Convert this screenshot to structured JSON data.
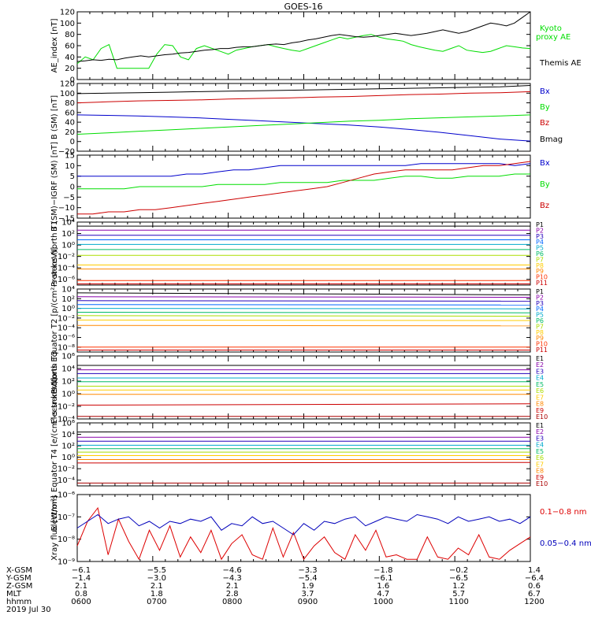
{
  "chart_data": [
    {
      "id": "ae",
      "type": "line",
      "title": "GOES-16",
      "ylabel": "AE_index [nT]",
      "ylim": [
        0,
        120
      ],
      "yscale": "linear",
      "yticks": [
        "0",
        "20",
        "40",
        "60",
        "80",
        "100",
        "120"
      ],
      "series": [
        {
          "name": "Kyoto proxy AE",
          "color": "#00dd00",
          "values": [
            28,
            40,
            35,
            55,
            62,
            20,
            20,
            20,
            20,
            20,
            45,
            62,
            60,
            40,
            35,
            55,
            60,
            55,
            50,
            45,
            52,
            55,
            58,
            60,
            62,
            58,
            55,
            52,
            50,
            55,
            60,
            65,
            70,
            75,
            72,
            75,
            78,
            80,
            75,
            72,
            70,
            68,
            62,
            58,
            55,
            52,
            50,
            55,
            60,
            52,
            50,
            48,
            50,
            55,
            60,
            58,
            56,
            55
          ]
        },
        {
          "name": "Themis AE",
          "color": "#000000",
          "values": [
            32,
            33,
            35,
            34,
            36,
            35,
            38,
            40,
            42,
            40,
            42,
            44,
            45,
            47,
            48,
            50,
            52,
            53,
            55,
            55,
            57,
            58,
            58,
            60,
            62,
            63,
            62,
            65,
            67,
            70,
            72,
            75,
            78,
            80,
            78,
            76,
            75,
            76,
            78,
            80,
            82,
            80,
            78,
            80,
            82,
            85,
            88,
            85,
            82,
            85,
            90,
            95,
            100,
            98,
            95,
            100,
            110,
            120
          ]
        }
      ]
    },
    {
      "id": "bsm",
      "type": "line",
      "ylabel": "B (SM) [nT]",
      "ylim": [
        -20,
        120
      ],
      "yscale": "linear",
      "yticks": [
        "−20",
        "0",
        "20",
        "40",
        "60",
        "80",
        "100",
        "120"
      ],
      "series": [
        {
          "name": "Bx",
          "color": "#0000cc",
          "values": [
            55,
            54,
            53,
            51,
            49,
            46,
            43,
            40,
            37,
            34,
            30,
            25,
            19,
            12,
            5,
            1
          ]
        },
        {
          "name": "By",
          "color": "#00dd00",
          "values": [
            15,
            18,
            21,
            24,
            27,
            30,
            33,
            36,
            39,
            42,
            44,
            47,
            49,
            51,
            53,
            55
          ]
        },
        {
          "name": "Bz",
          "color": "#cc0000",
          "values": [
            80,
            82,
            84,
            85,
            86,
            88,
            89,
            90,
            92,
            93,
            95,
            97,
            98,
            100,
            101,
            103
          ]
        },
        {
          "name": "Bmag",
          "color": "#000000",
          "values": [
            99,
            100,
            101,
            102,
            103,
            104,
            105,
            106,
            107,
            108,
            109,
            110,
            111,
            112,
            113,
            116
          ]
        }
      ]
    },
    {
      "id": "digrf",
      "type": "line",
      "ylabel": "B (SM)−IGRF (SM) [nT]",
      "ylim": [
        -15,
        15
      ],
      "yscale": "linear",
      "yticks": [
        "−15",
        "−10",
        "−5",
        "0",
        "5",
        "10",
        "15"
      ],
      "series": [
        {
          "name": "Bx",
          "color": "#0000cc",
          "values": [
            5,
            5,
            5,
            5,
            5,
            5,
            5,
            6,
            6,
            7,
            8,
            8,
            9,
            10,
            10,
            10,
            10,
            10,
            10,
            10,
            10,
            10,
            11,
            11,
            11,
            11,
            11,
            11,
            10,
            11
          ]
        },
        {
          "name": "By",
          "color": "#00dd00",
          "values": [
            -1,
            -1,
            -1,
            -1,
            0,
            0,
            0,
            0,
            0,
            1,
            1,
            1,
            1,
            2,
            2,
            2,
            2,
            3,
            3,
            3,
            4,
            5,
            5,
            4,
            4,
            5,
            5,
            5,
            6,
            6
          ]
        },
        {
          "name": "Bz",
          "color": "#cc0000",
          "values": [
            -13,
            -13,
            -12,
            -12,
            -11,
            -11,
            -10,
            -9,
            -8,
            -7,
            -6,
            -5,
            -4,
            -3,
            -2,
            -1,
            0,
            2,
            4,
            6,
            7,
            8,
            8,
            8,
            8,
            9,
            10,
            10,
            11,
            12
          ]
        }
      ]
    },
    {
      "id": "pn",
      "type": "line",
      "ylabel": "Protons North T1",
      "ylim": [
        -7,
        4
      ],
      "yscale": "log",
      "yticks": [
        "10⁻⁶",
        "10⁻⁴",
        "10⁻²",
        "10⁰",
        "10²",
        "10⁴"
      ],
      "series": [
        {
          "name": "P1",
          "color": "#000000",
          "values": [
            3.3,
            3.3
          ]
        },
        {
          "name": "P2",
          "color": "#8800aa",
          "values": [
            2.6,
            2.6
          ]
        },
        {
          "name": "P3",
          "color": "#2200bb",
          "values": [
            1.7,
            1.7
          ]
        },
        {
          "name": "P4",
          "color": "#0066ff",
          "values": [
            0.9,
            0.9
          ]
        },
        {
          "name": "P5",
          "color": "#00aacc",
          "values": [
            0.1,
            0.1
          ]
        },
        {
          "name": "P6",
          "color": "#00bb66",
          "values": [
            -0.8,
            -0.8
          ]
        },
        {
          "name": "P7",
          "color": "#aadd00",
          "values": [
            -1.8,
            -1.8
          ]
        },
        {
          "name": "P8",
          "color": "#ffcc00",
          "values": [
            -3.5,
            -3.5
          ]
        },
        {
          "name": "P9",
          "color": "#ff8800",
          "values": [
            -4.2,
            -4.2
          ]
        },
        {
          "name": "P10",
          "color": "#ff3300",
          "values": [
            -6.2,
            -6.2
          ]
        },
        {
          "name": "P11",
          "color": "#cc0000",
          "values": [
            -6.8,
            -6.8
          ]
        }
      ]
    },
    {
      "id": "pe",
      "type": "line",
      "ylabel": "Protons Equator T2 [p/(cm²-s-sr-keV)]",
      "ylim": [
        -9,
        4
      ],
      "yscale": "log",
      "yticks": [
        "10⁻⁸",
        "10⁻⁶",
        "10⁻⁴",
        "10⁻²",
        "10⁰",
        "10²",
        "10⁴"
      ],
      "series": [
        {
          "name": "P1",
          "color": "#000000",
          "values": [
            3.2,
            2.8
          ]
        },
        {
          "name": "P2",
          "color": "#8800aa",
          "values": [
            2.4,
            2.3
          ]
        },
        {
          "name": "P3",
          "color": "#2200bb",
          "values": [
            1.6,
            1.5
          ]
        },
        {
          "name": "P4",
          "color": "#0066ff",
          "values": [
            0.8,
            0.7
          ]
        },
        {
          "name": "P5",
          "color": "#00aacc",
          "values": [
            0.0,
            -0.1
          ]
        },
        {
          "name": "P6",
          "color": "#00bb66",
          "values": [
            -0.8,
            -0.9
          ]
        },
        {
          "name": "P7",
          "color": "#aadd00",
          "values": [
            -1.5,
            -1.6
          ]
        },
        {
          "name": "P8",
          "color": "#ffcc00",
          "values": [
            -2.4,
            -2.5
          ]
        },
        {
          "name": "P9",
          "color": "#ff8800",
          "values": [
            -3.5,
            -3.6
          ]
        },
        {
          "name": "P10",
          "color": "#ff3300",
          "values": [
            -8.0,
            -8.0
          ]
        },
        {
          "name": "P11",
          "color": "#cc0000",
          "values": [
            -8.6,
            -8.6
          ]
        }
      ]
    },
    {
      "id": "en",
      "type": "line",
      "ylabel": "Electrons North T3",
      "ylim": [
        -4,
        6
      ],
      "yscale": "log",
      "yticks": [
        "10⁻⁴",
        "10⁻²",
        "10⁰",
        "10²",
        "10⁴",
        "10⁶"
      ],
      "series": [
        {
          "name": "E1",
          "color": "#000000",
          "values": [
            4.5,
            4.5
          ]
        },
        {
          "name": "E2",
          "color": "#8800aa",
          "values": [
            3.8,
            3.8
          ]
        },
        {
          "name": "E3",
          "color": "#2200bb",
          "values": [
            3.2,
            3.2
          ]
        },
        {
          "name": "E4",
          "color": "#00aacc",
          "values": [
            2.5,
            2.5
          ]
        },
        {
          "name": "E5",
          "color": "#00bb66",
          "values": [
            1.9,
            1.9
          ]
        },
        {
          "name": "E6",
          "color": "#aadd00",
          "values": [
            1.2,
            1.2
          ]
        },
        {
          "name": "E7",
          "color": "#ffcc00",
          "values": [
            0.6,
            0.6
          ]
        },
        {
          "name": "E8",
          "color": "#ff8800",
          "values": [
            -0.1,
            -0.1
          ]
        },
        {
          "name": "E9",
          "color": "#cc0000",
          "values": [
            -1.8,
            -1.6
          ]
        },
        {
          "name": "E10",
          "color": "#aa0000",
          "values": [
            -3.6,
            -3.6
          ]
        }
      ]
    },
    {
      "id": "ee",
      "type": "line",
      "ylabel": "Electrons Equator T4 [e/(cm²-s-sr-keV)]",
      "ylim": [
        -5,
        6
      ],
      "yscale": "log",
      "yticks": [
        "10⁻⁴",
        "10⁻²",
        "10⁰",
        "10²",
        "10⁴",
        "10⁶"
      ],
      "series": [
        {
          "name": "E1",
          "color": "#000000",
          "values": [
            4.4,
            4.6
          ]
        },
        {
          "name": "E2",
          "color": "#8800aa",
          "values": [
            3.5,
            3.5
          ]
        },
        {
          "name": "E3",
          "color": "#2200bb",
          "values": [
            2.8,
            2.8
          ]
        },
        {
          "name": "E4",
          "color": "#00aacc",
          "values": [
            2.1,
            2.1
          ]
        },
        {
          "name": "E5",
          "color": "#00bb66",
          "values": [
            1.5,
            1.5
          ]
        },
        {
          "name": "E6",
          "color": "#aadd00",
          "values": [
            0.9,
            0.9
          ]
        },
        {
          "name": "E7",
          "color": "#ffcc00",
          "values": [
            0.3,
            0.3
          ]
        },
        {
          "name": "E8",
          "color": "#ff8800",
          "values": [
            -0.4,
            -0.4
          ]
        },
        {
          "name": "E9",
          "color": "#cc0000",
          "values": [
            -1.0,
            -0.9
          ]
        },
        {
          "name": "E10",
          "color": "#aa0000",
          "values": [
            -4.5,
            -4.5
          ]
        }
      ]
    },
    {
      "id": "xray",
      "type": "line",
      "ylabel": "Xray flux [W/m²]",
      "ylim": [
        -9,
        -6
      ],
      "yscale": "log",
      "yticks": [
        "10⁻⁹",
        "10⁻⁸",
        "10⁻⁷",
        "10⁻⁶"
      ],
      "series": [
        {
          "name": "0.1−0.8 nm",
          "color": "#dd0000",
          "values": [
            -8.3,
            -7.2,
            -6.6,
            -8.7,
            -7.1,
            -8.1,
            -8.9,
            -7.6,
            -8.5,
            -7.4,
            -8.8,
            -7.9,
            -8.6,
            -7.6,
            -8.9,
            -8.2,
            -7.8,
            -8.7,
            -8.9,
            -7.5,
            -8.8,
            -7.7,
            -8.9,
            -8.3,
            -7.9,
            -8.6,
            -8.9,
            -7.8,
            -8.5,
            -7.6,
            -8.8,
            -8.7,
            -8.9,
            -8.9,
            -7.9,
            -8.8,
            -8.9,
            -8.4,
            -8.7,
            -7.8,
            -8.8,
            -8.9,
            -8.5,
            -8.2,
            -7.9
          ]
        },
        {
          "name": "0.05−0.4 nm",
          "color": "#0000bb",
          "values": [
            -7.5,
            -7.2,
            -6.9,
            -7.3,
            -7.1,
            -7.0,
            -7.4,
            -7.2,
            -7.5,
            -7.2,
            -7.3,
            -7.1,
            -7.2,
            -7.0,
            -7.6,
            -7.3,
            -7.4,
            -7.0,
            -7.3,
            -7.2,
            -7.5,
            -7.8,
            -7.3,
            -7.6,
            -7.2,
            -7.3,
            -7.1,
            -7.0,
            -7.4,
            -7.2,
            -7.0,
            -7.1,
            -7.2,
            -6.9,
            -7.0,
            -7.1,
            -7.3,
            -7.0,
            -7.2,
            -7.1,
            -7.0,
            -7.2,
            -7.1,
            -7.3,
            -7.0
          ]
        }
      ]
    }
  ],
  "time_axis": {
    "row_labels": [
      "X-GSM",
      "Y-GSM",
      "Z-GSM",
      "MLT",
      "hhmm"
    ],
    "date": "2019 Jul 30",
    "columns": [
      {
        "values": [
          "−6.1",
          "−1.4",
          "2.1",
          "0.8",
          "0600"
        ]
      },
      {
        "values": [
          "−5.5",
          "−3.0",
          "2.1",
          "1.8",
          "0700"
        ]
      },
      {
        "values": [
          "−4.6",
          "−4.3",
          "2.1",
          "2.8",
          "0800"
        ]
      },
      {
        "values": [
          "−3.3",
          "−5.4",
          "1.9",
          "3.7",
          "0900"
        ]
      },
      {
        "values": [
          "−1.8",
          "−6.1",
          "1.6",
          "4.7",
          "1000"
        ]
      },
      {
        "values": [
          "−0.2",
          "−6.5",
          "1.2",
          "5.7",
          "1100"
        ]
      },
      {
        "values": [
          "1.4",
          "−6.4",
          "0.6",
          "6.7",
          "1200"
        ]
      }
    ]
  }
}
